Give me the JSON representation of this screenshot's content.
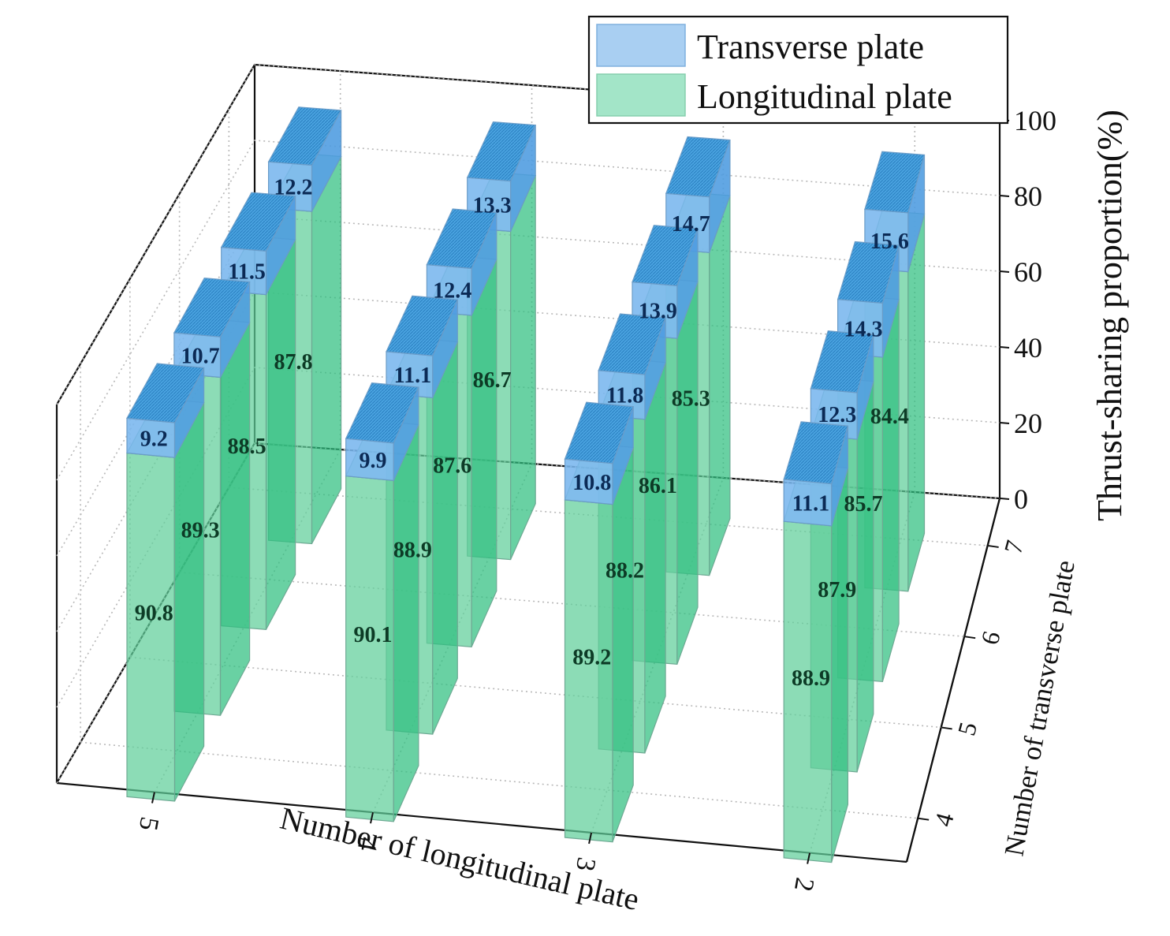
{
  "chart_data": {
    "type": "3d-stacked-bar",
    "title": "",
    "xlabel": "Number of longitudinal plate",
    "ylabel": "Number of transverse plate",
    "zlabel": "Thrust-sharing proportion(%)",
    "x_categories": [
      "5",
      "4",
      "3",
      "2"
    ],
    "y_categories": [
      "4",
      "5",
      "6",
      "7"
    ],
    "z_ticks": [
      "0",
      "20",
      "40",
      "60",
      "80",
      "100"
    ],
    "zlim": [
      0,
      100
    ],
    "legend": [
      {
        "name": "Transverse plate",
        "color": "#7fb8ea"
      },
      {
        "name": "Longitudinal plate",
        "color": "#6fd3a6"
      }
    ],
    "series": [
      {
        "name": "Longitudinal plate",
        "stack_order": 0,
        "values": [
          [
            90.8,
            89.3,
            88.5,
            87.8
          ],
          [
            90.1,
            88.9,
            87.6,
            86.7
          ],
          [
            89.2,
            88.2,
            86.1,
            85.3
          ],
          [
            88.9,
            87.9,
            85.7,
            84.4
          ]
        ]
      },
      {
        "name": "Transverse plate",
        "stack_order": 1,
        "values": [
          [
            9.2,
            10.7,
            11.5,
            12.2
          ],
          [
            9.9,
            11.1,
            12.4,
            13.3
          ],
          [
            10.8,
            11.8,
            13.9,
            14.7
          ],
          [
            11.1,
            12.3,
            14.3,
            15.6
          ]
        ]
      }
    ]
  }
}
